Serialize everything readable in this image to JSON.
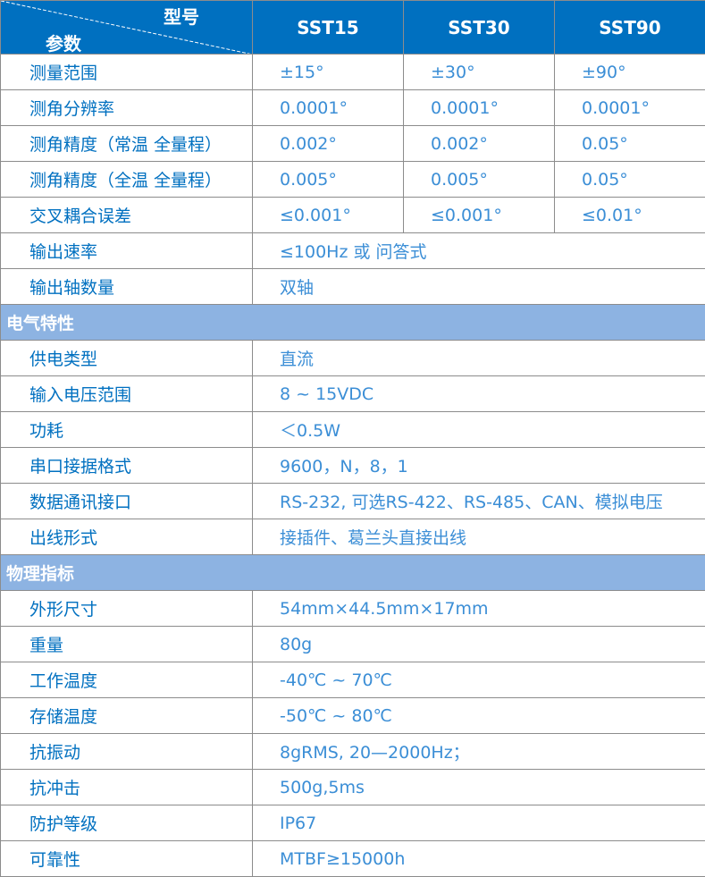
{
  "header": {
    "corner_top": "型号",
    "corner_bottom": "参数",
    "models": [
      "SST15",
      "SST30",
      "SST90"
    ]
  },
  "rows": [
    {
      "label": "测量范围",
      "values": [
        "±15°",
        "±30°",
        "±90°"
      ]
    },
    {
      "label": "测角分辨率",
      "values": [
        "0.0001°",
        "0.0001°",
        "0.0001°"
      ]
    },
    {
      "label": "测角精度（常温 全量程）",
      "values": [
        "0.002°",
        "0.002°",
        "0.05°"
      ]
    },
    {
      "label": "测角精度（全温 全量程）",
      "values": [
        "0.005°",
        "0.005°",
        "0.05°"
      ]
    },
    {
      "label": "交叉耦合误差",
      "values": [
        "≤0.001°",
        "≤0.001°",
        "≤0.01°"
      ]
    },
    {
      "label": "输出速率",
      "value": "≤100Hz 或 问答式"
    },
    {
      "label": "输出轴数量",
      "value": "双轴"
    },
    {
      "section": "电气特性"
    },
    {
      "label": "供电类型",
      "value": "直流"
    },
    {
      "label": "输入电压范围",
      "value": "8 ~ 15VDC"
    },
    {
      "label": "功耗",
      "value": "＜0.5W"
    },
    {
      "label": "串口接据格式",
      "value": "9600，N，8，1"
    },
    {
      "label": "数据通讯接口",
      "value": "RS-232, 可选RS-422、RS-485、CAN、模拟电压"
    },
    {
      "label": "出线形式",
      "value": "接插件、葛兰头直接出线"
    },
    {
      "section": "物理指标"
    },
    {
      "label": "外形尺寸",
      "value": "54mm×44.5mm×17mm"
    },
    {
      "label": "重量",
      "value": "80g"
    },
    {
      "label": "工作温度",
      "value": " -40℃ ~ 70℃"
    },
    {
      "label": "存储温度",
      "value": " -50℃ ~ 80℃"
    },
    {
      "label": "抗振动",
      "value": "8gRMS, 20—2000Hz；"
    },
    {
      "label": "抗冲击",
      "value": "500g,5ms"
    },
    {
      "label": "防护等级",
      "value": "IP67"
    },
    {
      "label": "可靠性",
      "value": "MTBF≥15000h"
    }
  ],
  "colors": {
    "header": "#0070c0",
    "section": "#8db3e2",
    "label_text": "#0070c0",
    "value_text": "#3b8ed6"
  }
}
